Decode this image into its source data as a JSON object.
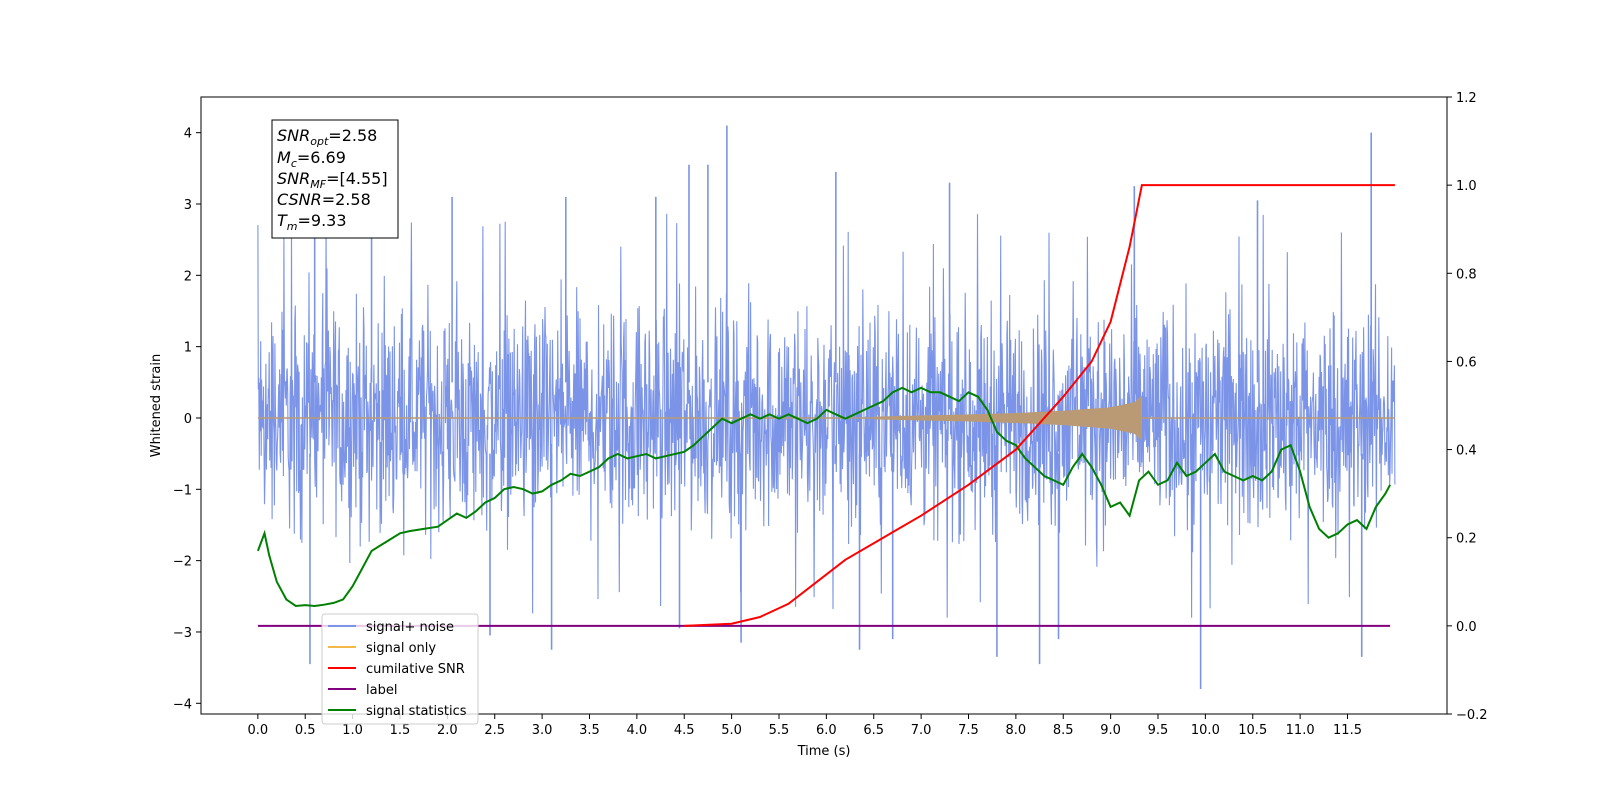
{
  "chart_data": {
    "type": "line",
    "xlabel": "Time (s)",
    "ylabel": "Whitened strain",
    "xlim": [
      -0.6,
      12.55
    ],
    "ylim": [
      -4.15,
      4.5
    ],
    "y2lim": [
      -0.2,
      1.2
    ],
    "x_ticks": [
      "0.0",
      "0.5",
      "1.0",
      "1.5",
      "2.0",
      "2.5",
      "3.0",
      "3.5",
      "4.0",
      "4.5",
      "5.0",
      "5.5",
      "6.0",
      "6.5",
      "7.0",
      "7.5",
      "8.0",
      "8.5",
      "9.0",
      "9.5",
      "10.0",
      "10.5",
      "11.0",
      "11.5"
    ],
    "y_ticks": [
      "4",
      "3",
      "2",
      "1",
      "0",
      "−1",
      "−2",
      "−3",
      "−4"
    ],
    "y2_ticks": [
      "1.2",
      "1.0",
      "0.8",
      "0.6",
      "0.4",
      "0.2",
      "0.0",
      "−0.2"
    ],
    "colors": {
      "signal_noise": "#7b94e8",
      "signal_only": "#f5b84a",
      "signal_envelope": "#b99a75",
      "cumulative_snr": "#ff0000",
      "label": "#800080",
      "signal_statistics": "#008000"
    },
    "annotations": {
      "snr_opt": {
        "base": "SNR",
        "sub": "opt",
        "value": "=2.58"
      },
      "mc": {
        "base": "M",
        "sub": "c",
        "value": "=6.69"
      },
      "snr_mf": {
        "base": "SNR",
        "sub": "MF",
        "value": "=[4.55]"
      },
      "csnr": {
        "base": "CSNR",
        "sub": "",
        "value": "=2.58"
      },
      "tm": {
        "base": "T",
        "sub": "m",
        "value": "=9.33"
      }
    },
    "legend": {
      "placement": "lower-left",
      "entries": [
        {
          "name": "signal+ noise",
          "color": "#7b94e8"
        },
        {
          "name": "signal only",
          "color": "#f5b84a"
        },
        {
          "name": "cumilative SNR",
          "color": "#ff0000"
        },
        {
          "name": "label",
          "color": "#800080"
        },
        {
          "name": "signal statistics",
          "color": "#008000"
        }
      ]
    },
    "series": [
      {
        "name": "signal+ noise",
        "axis": "left",
        "x_range": [
          0.0,
          12.0
        ],
        "typical_range": [
          -2.4,
          2.4
        ],
        "spikes": [
          [
            0.55,
            -3.45
          ],
          [
            0.6,
            2.9
          ],
          [
            1.2,
            2.6
          ],
          [
            2.05,
            3.1
          ],
          [
            2.45,
            -3.05
          ],
          [
            3.1,
            -3.25
          ],
          [
            3.25,
            3.1
          ],
          [
            4.2,
            3.1
          ],
          [
            4.45,
            -2.95
          ],
          [
            4.55,
            3.55
          ],
          [
            4.75,
            3.55
          ],
          [
            4.95,
            4.1
          ],
          [
            5.1,
            -3.15
          ],
          [
            6.1,
            3.45
          ],
          [
            6.35,
            -3.25
          ],
          [
            6.7,
            -3.1
          ],
          [
            7.3,
            3.3
          ],
          [
            7.8,
            -3.35
          ],
          [
            8.25,
            -3.45
          ],
          [
            8.45,
            -3.1
          ],
          [
            9.25,
            3.25
          ],
          [
            9.95,
            -3.8
          ],
          [
            10.55,
            3.05
          ],
          [
            11.65,
            -3.35
          ],
          [
            11.75,
            4.0
          ]
        ]
      },
      {
        "name": "signal only",
        "axis": "left",
        "x_range": [
          0.0,
          12.0
        ],
        "value": 0.0,
        "chirp_envelope": [
          [
            6.5,
            0.02
          ],
          [
            7.5,
            0.05
          ],
          [
            8.0,
            0.07
          ],
          [
            8.5,
            0.1
          ],
          [
            9.0,
            0.15
          ],
          [
            9.25,
            0.22
          ],
          [
            9.33,
            0.32
          ]
        ]
      },
      {
        "name": "cumilative SNR",
        "axis": "right",
        "x": [
          4.5,
          5.0,
          5.3,
          5.6,
          5.9,
          6.2,
          6.6,
          7.0,
          7.5,
          8.0,
          8.5,
          8.8,
          9.0,
          9.2,
          9.33,
          12.0
        ],
        "y": [
          0.0,
          0.005,
          0.02,
          0.05,
          0.1,
          0.15,
          0.2,
          0.25,
          0.32,
          0.4,
          0.52,
          0.6,
          0.69,
          0.86,
          1.0,
          1.0
        ]
      },
      {
        "name": "label",
        "axis": "right",
        "x": [
          0.0,
          11.95
        ],
        "y": [
          0.0,
          0.0
        ]
      },
      {
        "name": "signal statistics",
        "axis": "right",
        "x": [
          0.0,
          0.07,
          0.12,
          0.2,
          0.3,
          0.4,
          0.5,
          0.6,
          0.7,
          0.8,
          0.9,
          1.0,
          1.1,
          1.2,
          1.35,
          1.5,
          1.6,
          1.75,
          1.9,
          2.0,
          2.1,
          2.2,
          2.3,
          2.4,
          2.5,
          2.6,
          2.7,
          2.8,
          2.9,
          3.0,
          3.1,
          3.2,
          3.3,
          3.4,
          3.5,
          3.6,
          3.7,
          3.8,
          3.9,
          4.0,
          4.1,
          4.2,
          4.3,
          4.4,
          4.5,
          4.6,
          4.7,
          4.8,
          4.9,
          5.0,
          5.1,
          5.2,
          5.3,
          5.4,
          5.5,
          5.6,
          5.7,
          5.8,
          5.9,
          6.0,
          6.1,
          6.2,
          6.3,
          6.4,
          6.5,
          6.6,
          6.7,
          6.8,
          6.9,
          7.0,
          7.1,
          7.2,
          7.3,
          7.4,
          7.5,
          7.6,
          7.7,
          7.8,
          7.9,
          8.0,
          8.1,
          8.2,
          8.3,
          8.4,
          8.5,
          8.6,
          8.7,
          8.8,
          8.9,
          9.0,
          9.1,
          9.2,
          9.3,
          9.4,
          9.5,
          9.6,
          9.7,
          9.8,
          9.9,
          10.0,
          10.1,
          10.2,
          10.3,
          10.4,
          10.5,
          10.6,
          10.7,
          10.8,
          10.9,
          11.0,
          11.1,
          11.2,
          11.3,
          11.4,
          11.5,
          11.6,
          11.7,
          11.8,
          11.9,
          11.95
        ],
        "y": [
          0.17,
          0.21,
          0.16,
          0.1,
          0.06,
          0.045,
          0.047,
          0.045,
          0.048,
          0.052,
          0.06,
          0.09,
          0.13,
          0.17,
          0.19,
          0.21,
          0.215,
          0.22,
          0.225,
          0.24,
          0.255,
          0.245,
          0.26,
          0.28,
          0.29,
          0.31,
          0.315,
          0.31,
          0.3,
          0.305,
          0.32,
          0.33,
          0.345,
          0.34,
          0.35,
          0.36,
          0.38,
          0.39,
          0.38,
          0.385,
          0.39,
          0.38,
          0.385,
          0.39,
          0.395,
          0.41,
          0.43,
          0.45,
          0.47,
          0.46,
          0.47,
          0.48,
          0.47,
          0.48,
          0.47,
          0.48,
          0.47,
          0.46,
          0.47,
          0.49,
          0.48,
          0.47,
          0.48,
          0.49,
          0.5,
          0.51,
          0.53,
          0.54,
          0.53,
          0.54,
          0.53,
          0.53,
          0.52,
          0.51,
          0.53,
          0.52,
          0.49,
          0.44,
          0.42,
          0.41,
          0.38,
          0.36,
          0.34,
          0.33,
          0.32,
          0.36,
          0.39,
          0.36,
          0.32,
          0.27,
          0.28,
          0.25,
          0.33,
          0.35,
          0.32,
          0.33,
          0.37,
          0.34,
          0.35,
          0.37,
          0.39,
          0.35,
          0.34,
          0.33,
          0.34,
          0.33,
          0.35,
          0.4,
          0.41,
          0.35,
          0.27,
          0.22,
          0.2,
          0.21,
          0.23,
          0.24,
          0.22,
          0.27,
          0.3,
          0.32
        ]
      }
    ]
  }
}
